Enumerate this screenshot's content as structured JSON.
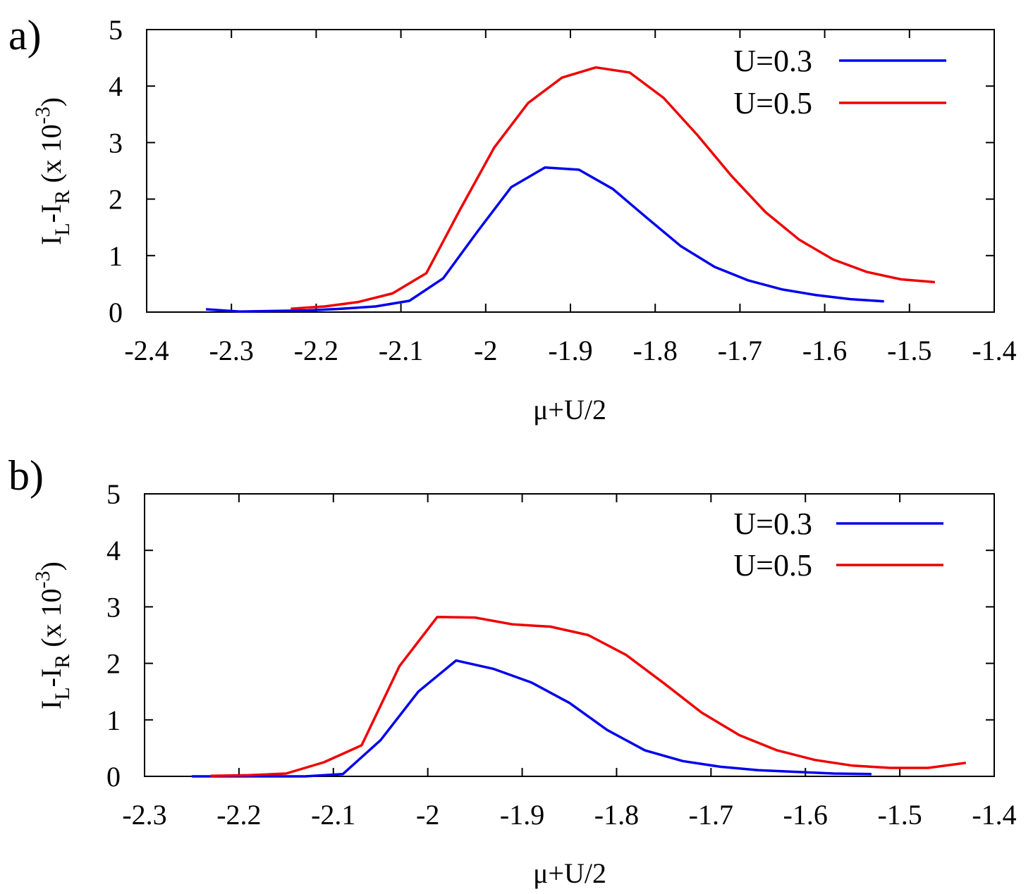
{
  "chart_data": [
    {
      "type": "line",
      "panel_label": "a)",
      "xlabel": "μ+U/2",
      "ylabel": {
        "main": "I",
        "sub1": "L",
        "mid": "-I",
        "sub2": "R",
        "paren": " (x 10",
        "sup": "-3",
        "close": ")"
      },
      "xlim": [
        -2.4,
        -1.4
      ],
      "ylim": [
        0,
        5
      ],
      "xticks": [
        "-2.4",
        "-2.3",
        "-2.2",
        "-2.1",
        "-2",
        "-1.9",
        "-1.8",
        "-1.7",
        "-1.6",
        "-1.5",
        "-1.4"
      ],
      "xtick_values": [
        -2.4,
        -2.3,
        -2.2,
        -2.1,
        -2.0,
        -1.9,
        -1.8,
        -1.7,
        -1.6,
        -1.5,
        -1.4
      ],
      "yticks": [
        "0",
        "1",
        "2",
        "3",
        "4",
        "5"
      ],
      "ytick_values": [
        0,
        1,
        2,
        3,
        4,
        5
      ],
      "legend_position": "top-right",
      "series": [
        {
          "name": "U=0.3",
          "color": "#0000ee",
          "x": [
            -2.33,
            -2.29,
            -2.25,
            -2.21,
            -2.17,
            -2.13,
            -2.09,
            -2.05,
            -2.01,
            -1.97,
            -1.93,
            -1.89,
            -1.85,
            -1.81,
            -1.77,
            -1.73,
            -1.69,
            -1.65,
            -1.61,
            -1.57,
            -1.53
          ],
          "y": [
            0.05,
            0.01,
            0.02,
            0.03,
            0.06,
            0.1,
            0.2,
            0.6,
            1.42,
            2.21,
            2.56,
            2.52,
            2.18,
            1.67,
            1.17,
            0.8,
            0.56,
            0.4,
            0.3,
            0.23,
            0.19
          ]
        },
        {
          "name": "U=0.5",
          "color": "#ee0000",
          "x": [
            -2.23,
            -2.19,
            -2.15,
            -2.11,
            -2.07,
            -2.03,
            -1.99,
            -1.95,
            -1.91,
            -1.87,
            -1.83,
            -1.79,
            -1.75,
            -1.71,
            -1.67,
            -1.63,
            -1.59,
            -1.55,
            -1.51,
            -1.47
          ],
          "y": [
            0.06,
            0.1,
            0.18,
            0.33,
            0.69,
            1.82,
            2.91,
            3.7,
            4.15,
            4.33,
            4.24,
            3.79,
            3.13,
            2.41,
            1.77,
            1.28,
            0.93,
            0.71,
            0.58,
            0.53
          ]
        }
      ]
    },
    {
      "type": "line",
      "panel_label": "b)",
      "xlabel": "μ+U/2",
      "ylabel": {
        "main": "I",
        "sub1": "L",
        "mid": "-I",
        "sub2": "R",
        "paren": " (x 10",
        "sup": "-3",
        "close": ")"
      },
      "xlim": [
        -2.3,
        -1.4
      ],
      "ylim": [
        0,
        5
      ],
      "xticks": [
        "-2.3",
        "-2.2",
        "-2.1",
        "-2",
        "-1.9",
        "-1.8",
        "-1.7",
        "-1.6",
        "-1.5",
        "-1.4"
      ],
      "xtick_values": [
        -2.3,
        -2.2,
        -2.1,
        -2.0,
        -1.9,
        -1.8,
        -1.7,
        -1.6,
        -1.5,
        -1.4
      ],
      "yticks": [
        "0",
        "1",
        "2",
        "3",
        "4",
        "5"
      ],
      "ytick_values": [
        0,
        1,
        2,
        3,
        4,
        5
      ],
      "legend_position": "top-right",
      "series": [
        {
          "name": "U=0.3",
          "color": "#0000ee",
          "x": [
            -2.25,
            -2.21,
            -2.17,
            -2.13,
            -2.09,
            -2.05,
            -2.01,
            -1.97,
            -1.93,
            -1.89,
            -1.85,
            -1.81,
            -1.77,
            -1.73,
            -1.69,
            -1.65,
            -1.61,
            -1.57,
            -1.53
          ],
          "y": [
            0.0,
            0.0,
            0.0,
            0.0,
            0.04,
            0.64,
            1.5,
            2.05,
            1.9,
            1.66,
            1.3,
            0.82,
            0.46,
            0.27,
            0.17,
            0.11,
            0.08,
            0.05,
            0.04
          ]
        },
        {
          "name": "U=0.5",
          "color": "#ee0000",
          "x": [
            -2.23,
            -2.19,
            -2.15,
            -2.11,
            -2.07,
            -2.03,
            -1.99,
            -1.95,
            -1.91,
            -1.87,
            -1.83,
            -1.79,
            -1.75,
            -1.71,
            -1.67,
            -1.63,
            -1.59,
            -1.55,
            -1.51,
            -1.47,
            -1.43
          ],
          "y": [
            0.01,
            0.02,
            0.05,
            0.25,
            0.55,
            1.95,
            2.82,
            2.81,
            2.69,
            2.65,
            2.5,
            2.15,
            1.65,
            1.13,
            0.73,
            0.46,
            0.29,
            0.19,
            0.15,
            0.15,
            0.24
          ]
        }
      ]
    }
  ]
}
